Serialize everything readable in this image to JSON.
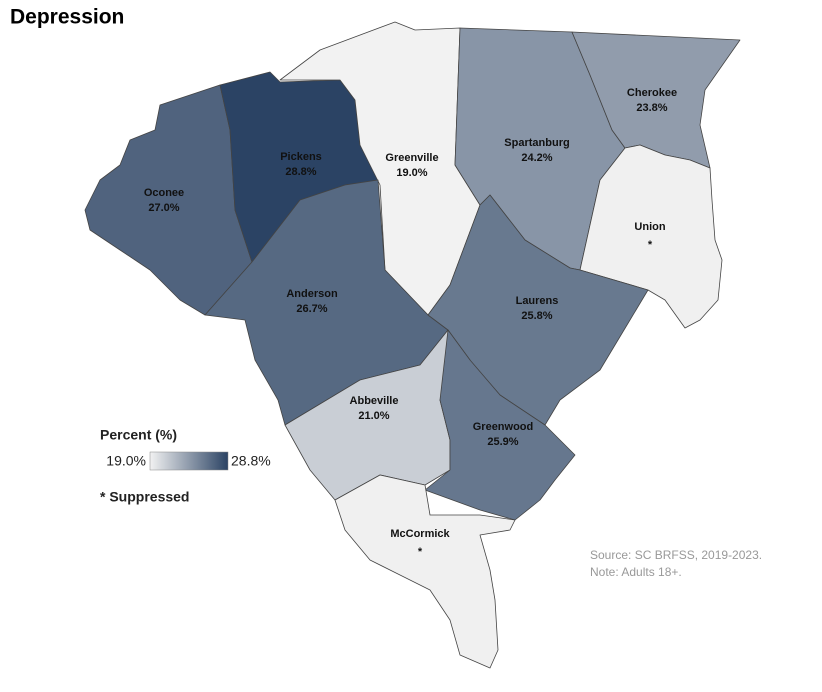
{
  "title": "Depression",
  "legend": {
    "title": "Percent (%)",
    "min": {
      "value": 19.0,
      "label": "19.0%"
    },
    "max": {
      "value": 28.8,
      "label": "28.8%"
    },
    "color_low": "#f2f2f2",
    "color_high": "#2b4364",
    "suppressed_color": "#f0f0f0",
    "suppressed_note": "* Suppressed"
  },
  "counties": [
    {
      "name": "Oconee",
      "value": 27.0,
      "value_label": "27.0%"
    },
    {
      "name": "Pickens",
      "value": 28.8,
      "value_label": "28.8%"
    },
    {
      "name": "Greenville",
      "value": 19.0,
      "value_label": "19.0%"
    },
    {
      "name": "Spartanburg",
      "value": 24.2,
      "value_label": "24.2%"
    },
    {
      "name": "Cherokee",
      "value": 23.8,
      "value_label": "23.8%"
    },
    {
      "name": "Union",
      "value": null,
      "value_label": "*"
    },
    {
      "name": "Anderson",
      "value": 26.7,
      "value_label": "26.7%"
    },
    {
      "name": "Laurens",
      "value": 25.8,
      "value_label": "25.8%"
    },
    {
      "name": "Abbeville",
      "value": 21.0,
      "value_label": "21.0%"
    },
    {
      "name": "Greenwood",
      "value": 25.9,
      "value_label": "25.9%"
    },
    {
      "name": "McCormick",
      "value": null,
      "value_label": "*"
    }
  ],
  "source": "Source: SC BRFSS, 2019-2023.",
  "note": "Note: Adults 18+."
}
